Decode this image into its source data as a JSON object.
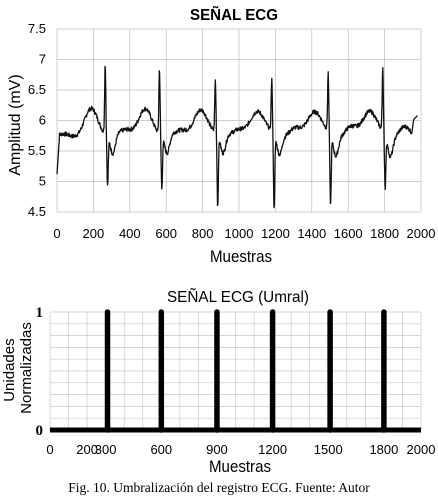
{
  "caption": "Fig. 10. Umbralización del registro ECG. Fuente: Autor",
  "chart_data": [
    {
      "type": "line",
      "title": "SEÑAL ECG",
      "xlabel": "Muestras",
      "ylabel": "Amplitud (mV)",
      "xlim": [
        0,
        2000
      ],
      "ylim": [
        4.5,
        7.5
      ],
      "xticks": [
        "0",
        "200",
        "400",
        "600",
        "800",
        "1000",
        "1200",
        "1400",
        "1600",
        "1800",
        "2000"
      ],
      "yticks": [
        "4.5",
        "5",
        "5.5",
        "6",
        "6.5",
        "7",
        "7.5"
      ],
      "grid": true,
      "line_color": "#111111",
      "series": [
        {
          "beats": [
            {
              "r_x": 265,
              "r_y": 7.2,
              "s_y": 4.95
            },
            {
              "r_x": 563,
              "r_y": 7.12,
              "s_y": 4.88
            },
            {
              "r_x": 870,
              "r_y": 6.9,
              "s_y": 4.57
            },
            {
              "r_x": 1180,
              "r_y": 6.9,
              "s_y": 4.52
            },
            {
              "r_x": 1490,
              "r_y": 7.0,
              "s_y": 4.6
            },
            {
              "r_x": 1790,
              "r_y": 7.12,
              "s_y": 4.88
            }
          ],
          "baseline": 5.75,
          "start_y": 5.12,
          "end_y": 6.08
        }
      ]
    },
    {
      "type": "bar",
      "title": "SEÑAL ECG (Umral)",
      "xlabel": "Muestras",
      "ylabel": "Unidades Normalizadas",
      "xlim": [
        0,
        2000
      ],
      "ylim": [
        0,
        1
      ],
      "xticks": [
        "0",
        "200",
        "300",
        "600",
        "900",
        "1200",
        "1500",
        "1800",
        "2000"
      ],
      "xtick_values": [
        0,
        200,
        300,
        600,
        900,
        1200,
        1500,
        1800,
        2000
      ],
      "yticks": [
        "0",
        "1"
      ],
      "grid": true,
      "x": [
        310,
        600,
        900,
        1200,
        1510,
        1800
      ],
      "values": [
        1,
        1,
        1,
        1,
        1,
        1
      ]
    }
  ]
}
